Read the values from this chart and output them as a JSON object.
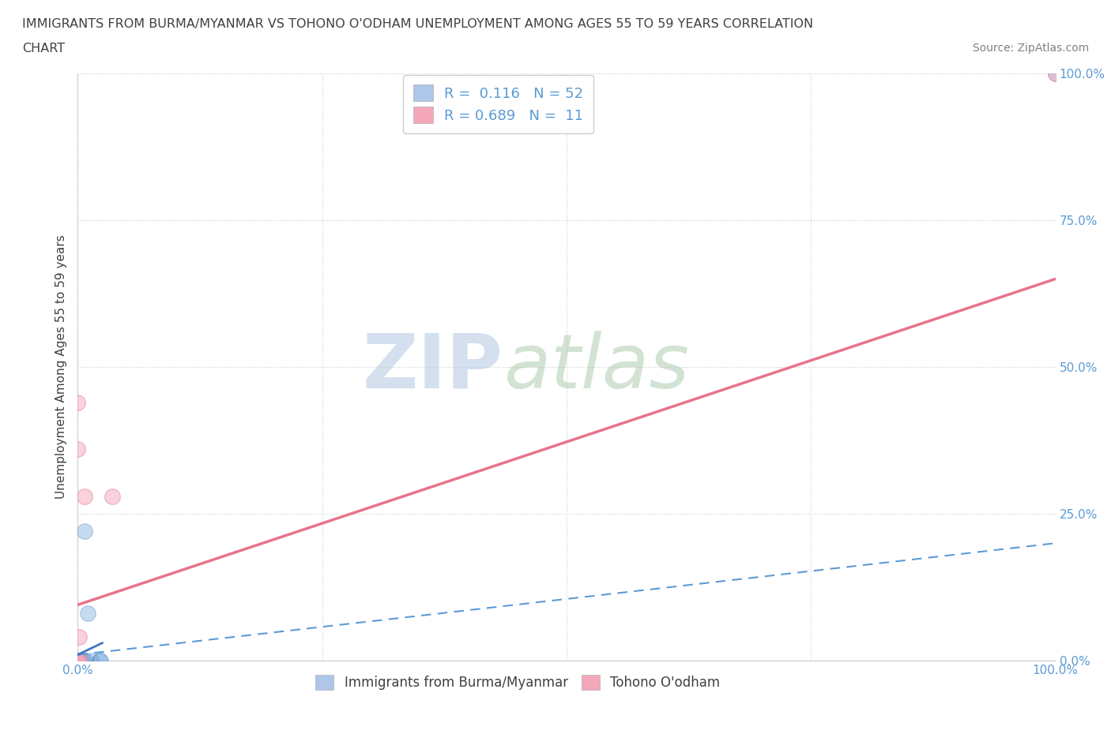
{
  "title_line1": "IMMIGRANTS FROM BURMA/MYANMAR VS TOHONO O'ODHAM UNEMPLOYMENT AMONG AGES 55 TO 59 YEARS CORRELATION",
  "title_line2": "CHART",
  "source": "Source: ZipAtlas.com",
  "ylabel": "Unemployment Among Ages 55 to 59 years",
  "xlim": [
    0.0,
    1.0
  ],
  "ylim": [
    0.0,
    1.0
  ],
  "xticks": [
    0.0,
    0.25,
    0.5,
    0.75,
    1.0
  ],
  "yticks": [
    0.0,
    0.25,
    0.5,
    0.75,
    1.0
  ],
  "xticklabels": [
    "0.0%",
    "",
    "",
    "",
    "100.0%"
  ],
  "yticklabels": [
    "0.0%",
    "25.0%",
    "50.0%",
    "75.0%",
    "100.0%"
  ],
  "blue_scatter_x": [
    0.0,
    0.0,
    0.0,
    0.0,
    0.0,
    0.0,
    0.0,
    0.0,
    0.0,
    0.0,
    0.0,
    0.0,
    0.0,
    0.0,
    0.0,
    0.0,
    0.0,
    0.0,
    0.0,
    0.0,
    0.0,
    0.0,
    0.0,
    0.0,
    0.0,
    0.0,
    0.0,
    0.0,
    0.0,
    0.0,
    0.0,
    0.0,
    0.0,
    0.0,
    0.0,
    0.0,
    0.0,
    0.0,
    0.0,
    0.0,
    0.0,
    0.0,
    0.0,
    0.0,
    0.005,
    0.007,
    0.008,
    0.01,
    0.013,
    0.022,
    0.023,
    1.0
  ],
  "blue_scatter_y": [
    0.0,
    0.0,
    0.0,
    0.0,
    0.0,
    0.0,
    0.0,
    0.0,
    0.0,
    0.0,
    0.0,
    0.0,
    0.0,
    0.0,
    0.0,
    0.0,
    0.0,
    0.0,
    0.0,
    0.0,
    0.0,
    0.0,
    0.0,
    0.0,
    0.0,
    0.0,
    0.0,
    0.0,
    0.0,
    0.0,
    0.0,
    0.0,
    0.0,
    0.0,
    0.0,
    0.0,
    0.0,
    0.0,
    0.0,
    0.0,
    0.0,
    0.0,
    0.0,
    0.0,
    0.0,
    0.22,
    0.0,
    0.08,
    0.0,
    0.0,
    0.0,
    1.0
  ],
  "pink_scatter_x": [
    0.0,
    0.0,
    0.0,
    0.0,
    0.0,
    0.0,
    0.001,
    0.002,
    0.007,
    0.035,
    1.0
  ],
  "pink_scatter_y": [
    0.44,
    0.36,
    0.0,
    0.0,
    0.0,
    0.0,
    0.04,
    0.0,
    0.28,
    0.28,
    1.0
  ],
  "blue_dashed_line_x": [
    0.0,
    1.0
  ],
  "blue_dashed_line_y": [
    0.01,
    0.2
  ],
  "blue_solid_line_x": [
    0.0,
    0.025
  ],
  "blue_solid_line_y": [
    0.01,
    0.03
  ],
  "pink_line_x": [
    0.0,
    1.0
  ],
  "pink_line_y": [
    0.095,
    0.65
  ],
  "background_color": "#ffffff",
  "grid_color": "#cccccc",
  "title_color": "#404040"
}
